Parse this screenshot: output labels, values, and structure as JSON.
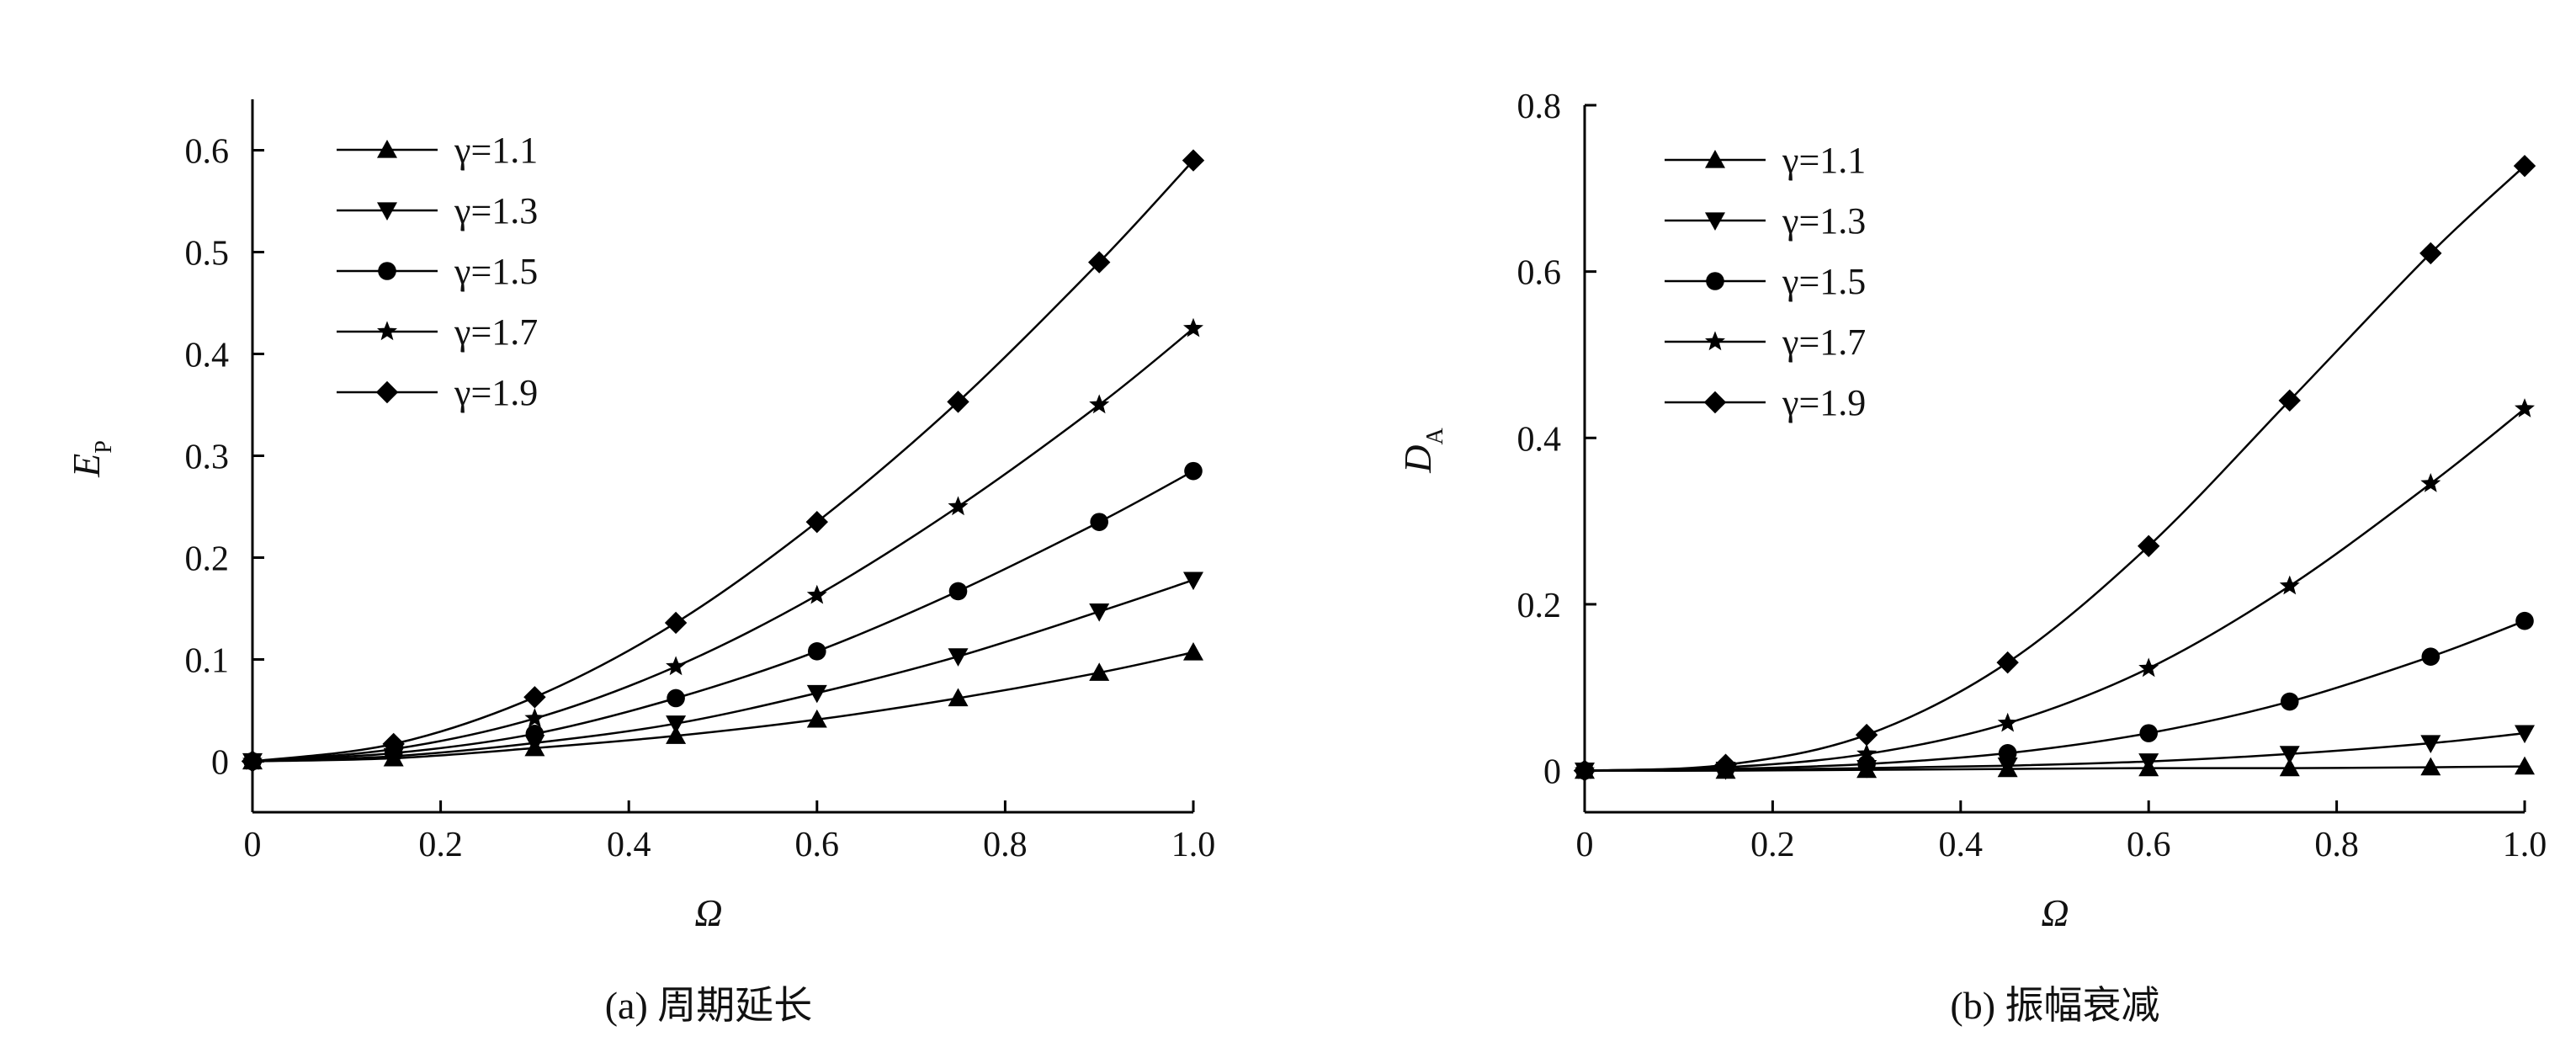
{
  "charts": [
    {
      "caption": "(a) 周期延长",
      "ylabel_main": "E",
      "ylabel_sub": "P",
      "xlabel": "Ω",
      "xticks": [
        "0",
        "0.2",
        "0.4",
        "0.6",
        "0.8",
        "1.0"
      ],
      "yticks": [
        "0",
        "0.1",
        "0.2",
        "0.3",
        "0.4",
        "0.5",
        "0.6"
      ]
    },
    {
      "caption": "(b) 振幅衰减",
      "ylabel_main": "D",
      "ylabel_sub": "A",
      "xlabel": "Ω",
      "xticks": [
        "0",
        "0.2",
        "0.4",
        "0.6",
        "0.8",
        "1.0"
      ],
      "yticks": [
        "0",
        "0.2",
        "0.4",
        "0.6",
        "0.8"
      ]
    }
  ],
  "chart_data": [
    {
      "type": "line",
      "title": "(a) 周期延长",
      "xlabel": "Ω",
      "ylabel": "E_P",
      "xlim": [
        0,
        1.0
      ],
      "ylim": [
        -0.05,
        0.65
      ],
      "grid": false,
      "legend": "top-left",
      "x": [
        0,
        0.15,
        0.3,
        0.45,
        0.6,
        0.75,
        0.9,
        1.0
      ],
      "series": [
        {
          "name": "γ=1.1",
          "marker": "triangle-up",
          "values": [
            0,
            0.003,
            0.013,
            0.025,
            0.041,
            0.062,
            0.087,
            0.107
          ]
        },
        {
          "name": "γ=1.3",
          "marker": "triangle-down",
          "values": [
            0,
            0.005,
            0.018,
            0.037,
            0.067,
            0.103,
            0.147,
            0.178
          ]
        },
        {
          "name": "γ=1.5",
          "marker": "circle",
          "values": [
            0,
            0.008,
            0.027,
            0.062,
            0.108,
            0.167,
            0.235,
            0.285
          ]
        },
        {
          "name": "γ=1.7",
          "marker": "star",
          "values": [
            0,
            0.012,
            0.042,
            0.093,
            0.163,
            0.25,
            0.35,
            0.425
          ]
        },
        {
          "name": "γ=1.9",
          "marker": "diamond",
          "values": [
            0,
            0.017,
            0.063,
            0.136,
            0.235,
            0.353,
            0.49,
            0.59
          ]
        }
      ]
    },
    {
      "type": "line",
      "title": "(b) 振幅衰减",
      "xlabel": "Ω",
      "ylabel": "D_A",
      "xlim": [
        0,
        1.0
      ],
      "ylim": [
        -0.05,
        0.8
      ],
      "grid": false,
      "legend": "top-left",
      "x": [
        0,
        0.15,
        0.3,
        0.45,
        0.6,
        0.75,
        0.9,
        1.0
      ],
      "series": [
        {
          "name": "γ=1.1",
          "marker": "triangle-up",
          "values": [
            0,
            0,
            0.001,
            0.002,
            0.003,
            0.003,
            0.004,
            0.005
          ]
        },
        {
          "name": "γ=1.3",
          "marker": "triangle-down",
          "values": [
            0,
            0.001,
            0.003,
            0.006,
            0.011,
            0.02,
            0.033,
            0.045
          ]
        },
        {
          "name": "γ=1.5",
          "marker": "circle",
          "values": [
            0,
            0.002,
            0.008,
            0.021,
            0.045,
            0.083,
            0.137,
            0.18
          ]
        },
        {
          "name": "γ=1.7",
          "marker": "star",
          "values": [
            0,
            0.004,
            0.02,
            0.057,
            0.123,
            0.222,
            0.345,
            0.435
          ]
        },
        {
          "name": "γ=1.9",
          "marker": "diamond",
          "values": [
            0,
            0.007,
            0.043,
            0.13,
            0.27,
            0.445,
            0.622,
            0.727
          ]
        }
      ]
    }
  ]
}
